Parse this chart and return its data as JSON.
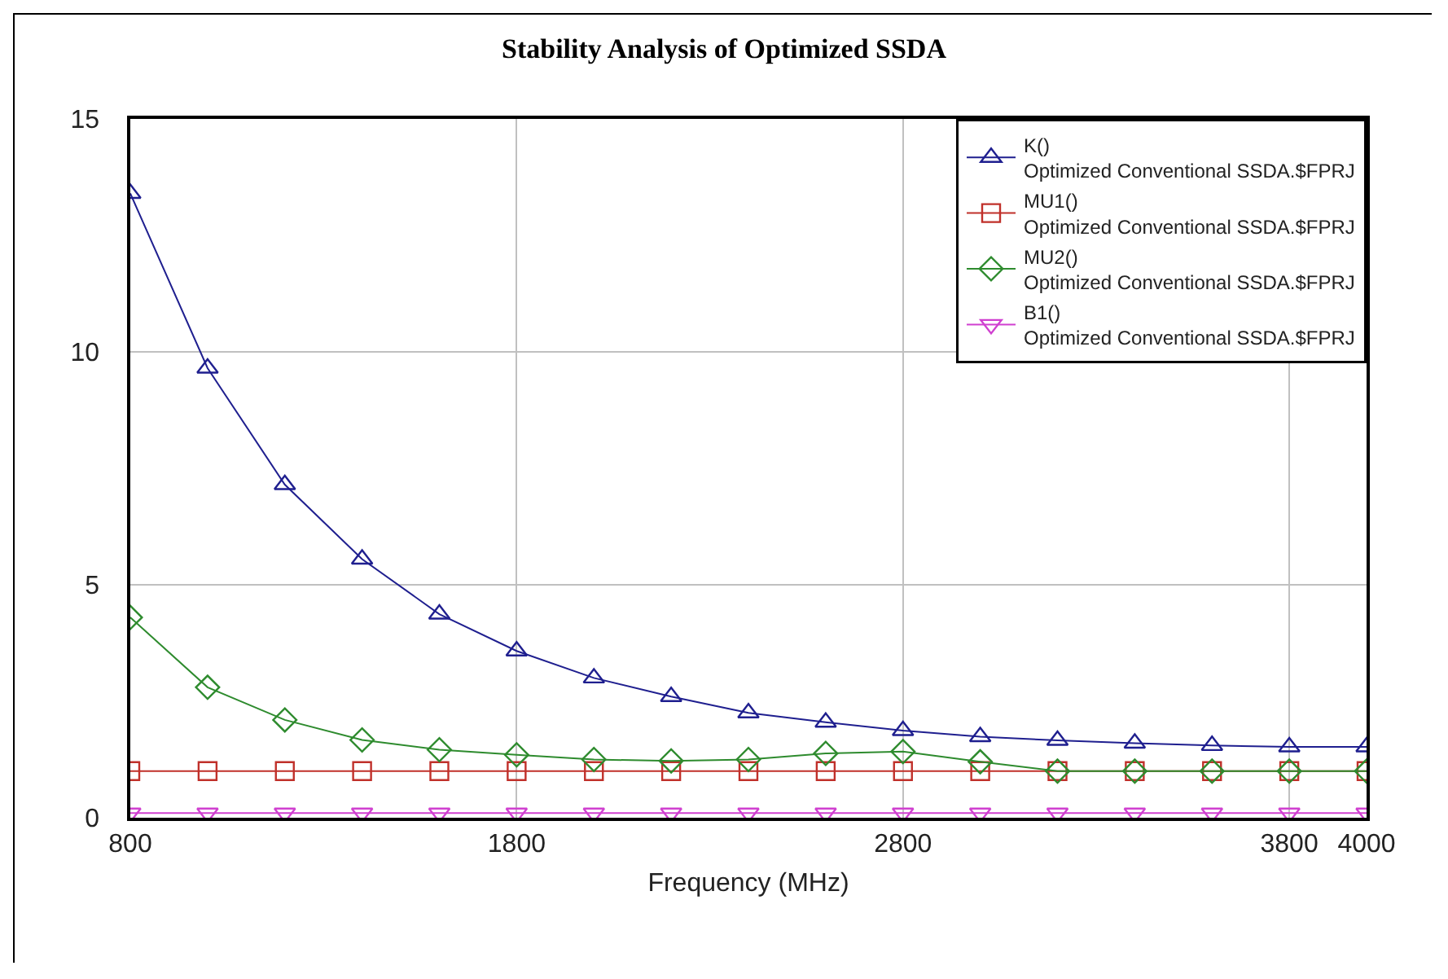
{
  "chart_data": {
    "type": "line",
    "title": "Stability Analysis of Optimized SSDA",
    "xlabel": "Frequency (MHz)",
    "x": [
      800,
      1000,
      1200,
      1400,
      1600,
      1800,
      2000,
      2200,
      2400,
      2600,
      2800,
      3000,
      3200,
      3400,
      3600,
      3800,
      4000
    ],
    "xlim": [
      800,
      4000
    ],
    "xticks": [
      800,
      1800,
      2800,
      3800,
      4000
    ],
    "ylim": [
      0,
      15
    ],
    "yticks": [
      0,
      5,
      10,
      15
    ],
    "grid": true,
    "legend": "top right",
    "line_style": "solid",
    "series": [
      {
        "name": "K()\nOptimized Conventional SSDA.$FPRJ",
        "color": "#1f1f8f",
        "marker": "triangle",
        "values": [
          13.4,
          9.65,
          7.15,
          5.55,
          4.37,
          3.58,
          3.0,
          2.6,
          2.25,
          2.05,
          1.87,
          1.74,
          1.66,
          1.6,
          1.55,
          1.52,
          1.52
        ]
      },
      {
        "name": "MU1()\nOptimized Conventional SSDA.$FPRJ",
        "color": "#c0302a",
        "marker": "square",
        "values": [
          1.0,
          1.0,
          1.0,
          1.0,
          1.0,
          1.0,
          1.0,
          1.0,
          1.0,
          1.0,
          1.0,
          1.0,
          1.0,
          1.0,
          1.0,
          1.0,
          1.0
        ]
      },
      {
        "name": "MU2()\nOptimized Conventional SSDA.$FPRJ",
        "color": "#2e8b2e",
        "marker": "diamond",
        "values": [
          4.3,
          2.8,
          2.1,
          1.67,
          1.46,
          1.35,
          1.25,
          1.22,
          1.25,
          1.38,
          1.42,
          1.2,
          1.0,
          1.0,
          1.0,
          1.0,
          1.0
        ]
      },
      {
        "name": "B1()\nOptimized Conventional SSDA.$FPRJ",
        "color": "#d040d0",
        "marker": "triangle-down",
        "values": [
          0.1,
          0.1,
          0.1,
          0.1,
          0.1,
          0.1,
          0.1,
          0.1,
          0.1,
          0.1,
          0.1,
          0.1,
          0.1,
          0.1,
          0.1,
          0.1,
          0.1
        ]
      }
    ]
  }
}
